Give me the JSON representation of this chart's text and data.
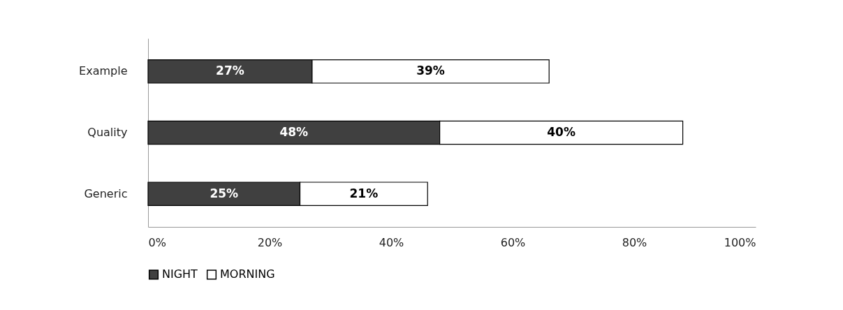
{
  "chart_data": {
    "type": "bar",
    "orientation": "horizontal",
    "stacked": true,
    "categories": [
      "Example",
      "Quality",
      "Generic"
    ],
    "series": [
      {
        "name": "NIGHT",
        "color": "#404040",
        "values": [
          27,
          48,
          25
        ],
        "value_labels": [
          "27%",
          "48%",
          "25%"
        ]
      },
      {
        "name": "MORNING",
        "color": "#ffffff",
        "values": [
          39,
          40,
          21
        ],
        "value_labels": [
          "39%",
          "40%",
          "21%"
        ]
      }
    ],
    "xlim": [
      0,
      100
    ],
    "xticks": [
      {
        "value": 0,
        "label": "0%"
      },
      {
        "value": 20,
        "label": "20%"
      },
      {
        "value": 40,
        "label": "40%"
      },
      {
        "value": 60,
        "label": "60%"
      },
      {
        "value": 80,
        "label": "80%"
      },
      {
        "value": 100,
        "label": "100%"
      }
    ],
    "grid": false,
    "legend": "bottom"
  }
}
